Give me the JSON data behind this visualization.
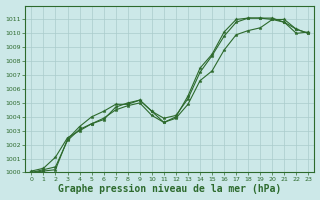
{
  "background_color": "#cce8e8",
  "grid_color": "#aacccc",
  "line_color": "#2d6a2d",
  "marker_color": "#2d6a2d",
  "xlabel": "Graphe pression niveau de la mer (hPa)",
  "xlabel_fontsize": 7,
  "xlim": [
    -0.5,
    23.5
  ],
  "ylim": [
    1000,
    1012
  ],
  "yticks": [
    1000,
    1001,
    1002,
    1003,
    1004,
    1005,
    1006,
    1007,
    1008,
    1009,
    1010,
    1011
  ],
  "xticks": [
    0,
    1,
    2,
    3,
    4,
    5,
    6,
    7,
    8,
    9,
    10,
    11,
    12,
    13,
    14,
    15,
    16,
    17,
    18,
    19,
    20,
    21,
    22,
    23
  ],
  "series1_x": [
    0,
    1,
    2,
    3,
    4,
    5,
    6,
    7,
    8,
    9,
    10,
    11,
    12,
    13,
    14,
    15,
    16,
    17,
    18,
    19,
    20,
    21,
    22,
    23
  ],
  "series1_y": [
    1000.1,
    1000.3,
    1001.1,
    1002.5,
    1003.0,
    1003.5,
    1003.8,
    1004.7,
    1005.0,
    1005.2,
    1004.4,
    1003.6,
    1004.0,
    1005.5,
    1007.5,
    1008.5,
    1010.1,
    1011.0,
    1011.1,
    1011.1,
    1011.1,
    1010.8,
    1010.0,
    1010.1
  ],
  "series2_x": [
    0,
    1,
    2,
    3,
    4,
    5,
    6,
    7,
    8,
    9,
    10,
    11,
    12,
    13,
    14,
    15,
    16,
    17,
    18,
    19,
    20,
    21,
    22,
    23
  ],
  "series2_y": [
    1000.0,
    1000.2,
    1000.4,
    1002.3,
    1003.1,
    1003.5,
    1003.9,
    1004.5,
    1004.8,
    1005.0,
    1004.1,
    1003.6,
    1003.9,
    1004.9,
    1006.6,
    1007.3,
    1008.8,
    1009.9,
    1010.2,
    1010.4,
    1011.0,
    1011.0,
    1010.3,
    1010.0
  ],
  "series3_x": [
    0,
    1,
    2,
    3,
    4,
    5,
    6,
    7,
    8,
    9,
    10,
    11,
    12,
    13,
    14,
    15,
    16,
    17,
    18,
    19,
    20,
    21,
    22,
    23
  ],
  "series3_y": [
    1000.0,
    1000.1,
    1000.2,
    1002.4,
    1003.3,
    1004.0,
    1004.4,
    1004.9,
    1004.9,
    1005.2,
    1004.4,
    1003.9,
    1004.1,
    1005.3,
    1007.2,
    1008.4,
    1009.8,
    1010.8,
    1011.1,
    1011.1,
    1011.0,
    1010.8,
    1010.3,
    1010.0
  ]
}
